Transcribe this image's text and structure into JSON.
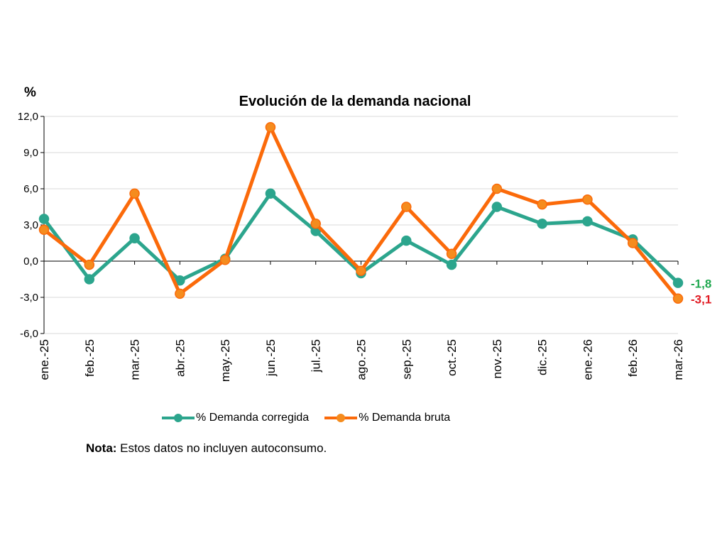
{
  "chart_data": {
    "type": "line",
    "title": "Evolución de la demanda nacional",
    "ylabel": "%",
    "xlabel": "",
    "ylim": [
      -6.0,
      12.0
    ],
    "yticks": [
      "12,0",
      "9,0",
      "6,0",
      "3,0",
      "0,0",
      "-3,0",
      "-6,0"
    ],
    "ytick_values": [
      12,
      9,
      6,
      3,
      0,
      -3,
      -6
    ],
    "grid": true,
    "legend_position": "bottom",
    "categories": [
      "ene.-25",
      "feb.-25",
      "mar.-25",
      "abr.-25",
      "may.-25",
      "jun.-25",
      "jul.-25",
      "ago.-25",
      "sep.-25",
      "oct.-25",
      "nov.-25",
      "dic.-25",
      "ene.-26",
      "feb.-26",
      "mar.-26"
    ],
    "series": [
      {
        "name": "% Demanda corregida",
        "color": "#2ca58d",
        "values": [
          3.5,
          -1.5,
          1.9,
          -1.6,
          0.2,
          5.6,
          2.5,
          -1.0,
          1.7,
          -0.3,
          4.5,
          3.1,
          3.3,
          1.8,
          -1.8
        ],
        "last_label": "-1,8",
        "last_label_color": "#1fa84f"
      },
      {
        "name": "% Demanda bruta",
        "color": "#fb6a0a",
        "values": [
          2.6,
          -0.3,
          5.6,
          -2.7,
          0.1,
          11.1,
          3.1,
          -0.8,
          4.5,
          0.6,
          6.0,
          4.7,
          5.1,
          1.5,
          -3.1
        ],
        "last_label": "-3,1",
        "last_label_color": "#e11c24"
      }
    ]
  },
  "note": {
    "label": "Nota:",
    "text": " Estos datos no incluyen autoconsumo."
  }
}
